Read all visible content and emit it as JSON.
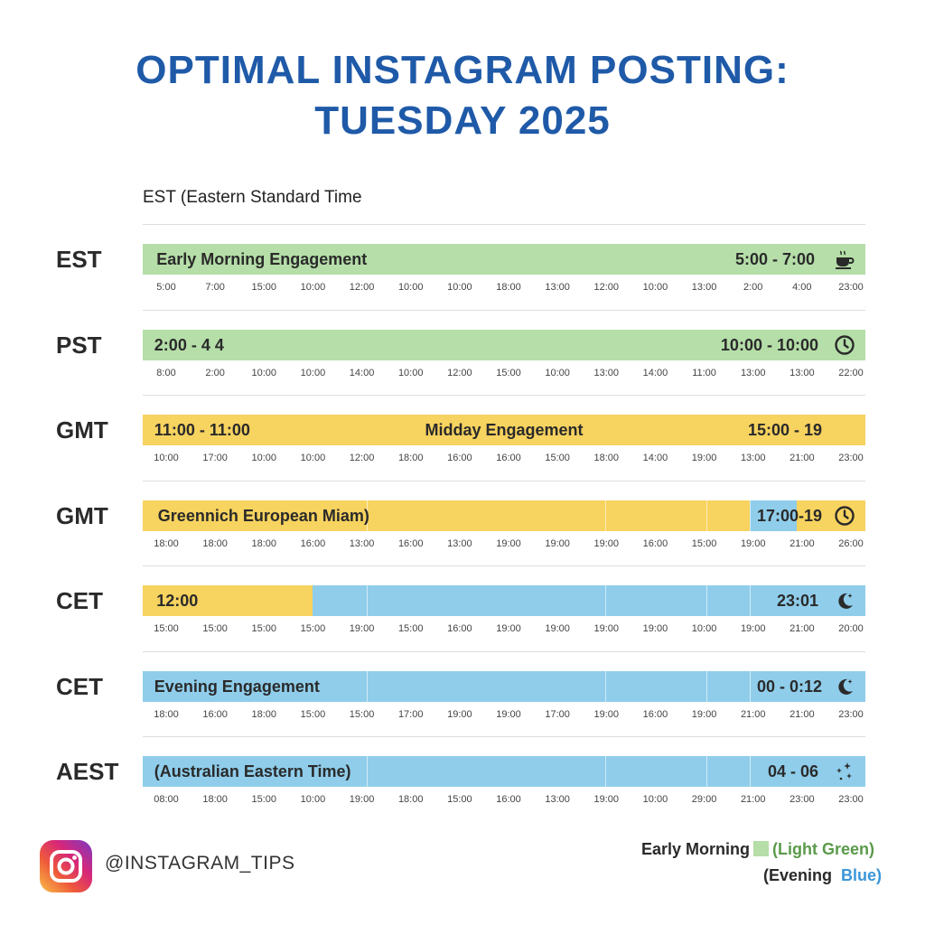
{
  "title_line_1": "OPTIMAL INSTAGRAM POSTING:",
  "title_line_2": "TUESDAY 2025",
  "subtitle": "EST (Eastern Standard Time",
  "colors": {
    "green": "#b5dea8",
    "yellow": "#f7d35f",
    "blue": "#8fcdeb",
    "title": "#1f5aa8",
    "legend_green": "#5a9a4a",
    "legend_blue": "#3a96d8"
  },
  "chart_data": {
    "type": "table",
    "title": "OPTIMAL INSTAGRAM POSTING: TUESDAY 2025",
    "rows": [
      {
        "label": "EST",
        "segments": [
          {
            "color": "green",
            "from": 0,
            "to": 1
          }
        ],
        "texts": [
          {
            "text": "Early Morning Engagement",
            "align": "left",
            "at": 0.019
          },
          {
            "text": "5:00 - 7:00",
            "align": "right",
            "at": 0.93
          }
        ],
        "icon": "coffee-cup-icon",
        "ticks": [
          "5:00",
          "7:00",
          "15:00",
          "10:00",
          "12:00",
          "10:00",
          "10:00",
          "18:00",
          "13:00",
          "12:00",
          "10:00",
          "13:00",
          "2:00",
          "4:00",
          "23:00"
        ]
      },
      {
        "label": "PST",
        "segments": [
          {
            "color": "green",
            "from": 0,
            "to": 1
          }
        ],
        "texts": [
          {
            "text": "2:00 - 4 4",
            "align": "left",
            "at": 0.016
          },
          {
            "text": "10:00 - 10:00",
            "align": "right",
            "at": 0.935
          }
        ],
        "icon": "clock-icon",
        "ticks": [
          "8:00",
          "2:00",
          "10:00",
          "10:00",
          "14:00",
          "10:00",
          "12:00",
          "15:00",
          "10:00",
          "13:00",
          "14:00",
          "11:00",
          "13:00",
          "13:00",
          "22:00"
        ]
      },
      {
        "label": "GMT",
        "segments": [
          {
            "color": "yellow",
            "from": 0,
            "to": 1
          }
        ],
        "texts": [
          {
            "text": "11:00 - 11:00",
            "align": "left",
            "at": 0.016
          },
          {
            "text": "Midday Engagement",
            "align": "center",
            "at": 0.5
          },
          {
            "text": "15:00 - 19",
            "align": "right",
            "at": 0.94
          }
        ],
        "icon": "",
        "ticks": [
          "10:00",
          "17:00",
          "10:00",
          "10:00",
          "12:00",
          "18:00",
          "16:00",
          "16:00",
          "15:00",
          "18:00",
          "14:00",
          "19:00",
          "13:00",
          "21:00",
          "23:00"
        ]
      },
      {
        "label": "GMT",
        "segments": [
          {
            "color": "yellow",
            "from": 0,
            "to": 0.84
          },
          {
            "color": "blue",
            "from": 0.84,
            "to": 0.905
          },
          {
            "color": "yellow",
            "from": 0.905,
            "to": 1
          }
        ],
        "texts": [
          {
            "text": "Greennich European Miam)",
            "align": "left",
            "at": 0.021
          },
          {
            "text": "17:00-19",
            "align": "right",
            "at": 0.94
          }
        ],
        "icon": "clock-icon",
        "ticks": [
          "18:00",
          "18:00",
          "18:00",
          "16:00",
          "13:00",
          "16:00",
          "13:00",
          "19:00",
          "19:00",
          "19:00",
          "16:00",
          "15:00",
          "19:00",
          "21:00",
          "26:00"
        ]
      },
      {
        "label": "CET",
        "segments": [
          {
            "color": "yellow",
            "from": 0,
            "to": 0.235
          },
          {
            "color": "blue",
            "from": 0.235,
            "to": 1
          }
        ],
        "texts": [
          {
            "text": "12:00",
            "align": "left",
            "at": 0.019
          },
          {
            "text": "23:01",
            "align": "right",
            "at": 0.935
          }
        ],
        "icon": "moon-icon",
        "ticks": [
          "15:00",
          "15:00",
          "15:00",
          "15:00",
          "19:00",
          "15:00",
          "16:00",
          "19:00",
          "19:00",
          "19:00",
          "19:00",
          "10:00",
          "19:00",
          "21:00",
          "20:00"
        ]
      },
      {
        "label": "CET",
        "segments": [
          {
            "color": "blue",
            "from": 0,
            "to": 1
          }
        ],
        "texts": [
          {
            "text": "Evening Engagement",
            "align": "left",
            "at": 0.016
          },
          {
            "text": "00 - 0:12",
            "align": "right",
            "at": 0.94
          }
        ],
        "icon": "moon-icon",
        "ticks": [
          "18:00",
          "16:00",
          "18:00",
          "15:00",
          "15:00",
          "17:00",
          "19:00",
          "19:00",
          "17:00",
          "19:00",
          "16:00",
          "19:00",
          "21:00",
          "21:00",
          "23:00"
        ]
      },
      {
        "label": "AEST",
        "segments": [
          {
            "color": "blue",
            "from": 0,
            "to": 1
          }
        ],
        "texts": [
          {
            "text": "(Australian Eastern Time)",
            "align": "left",
            "at": 0.016
          },
          {
            "text": "04 -  06",
            "align": "right",
            "at": 0.935
          }
        ],
        "icon": "sparkles-icon",
        "ticks": [
          "08:00",
          "18:00",
          "15:00",
          "10:00",
          "19:00",
          "18:00",
          "15:00",
          "16:00",
          "13:00",
          "19:00",
          "10:00",
          "29:00",
          "21:00",
          "23:00",
          "23:00"
        ]
      }
    ]
  },
  "branding": {
    "logo_icon": "instagram-logo-icon",
    "handle": "@INSTAGRAM_TIPS"
  },
  "legend": {
    "line1_a": "Early Morning",
    "line1_b": "(Light Green)",
    "line2_a": "(Evening",
    "line2_b": "Blue)"
  }
}
